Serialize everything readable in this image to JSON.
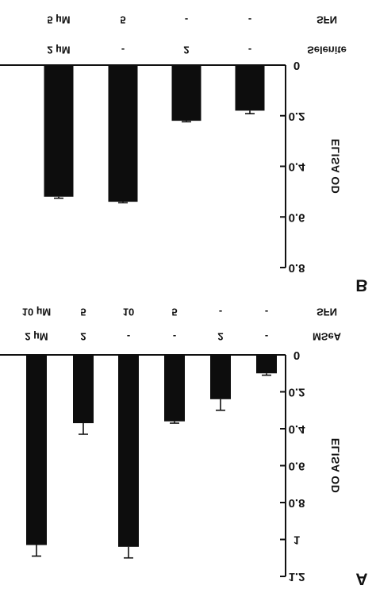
{
  "chart_data": [
    {
      "panel": "B",
      "type": "bar",
      "ylabel": "ELISA OD",
      "ylim": [
        0,
        0.8
      ],
      "yticks": [
        0,
        0.2,
        0.4,
        0.6,
        0.8
      ],
      "ytick_labels": [
        "0",
        "0.2",
        "0.4",
        "0.6",
        "0.8"
      ],
      "condition_rows": [
        {
          "label": "SFN",
          "values": [
            "-",
            "-",
            "5",
            "5 µM"
          ]
        },
        {
          "label": "Selenite",
          "values": [
            "-",
            "2",
            "-",
            "2 µM"
          ]
        }
      ],
      "values": [
        0.18,
        0.22,
        0.54,
        0.52
      ],
      "errors": [
        0.012,
        0.004,
        0.004,
        0.006
      ]
    },
    {
      "panel": "A",
      "type": "bar",
      "ylabel": "ELISA OD",
      "ylim": [
        0,
        1.2
      ],
      "yticks": [
        0,
        0.2,
        0.4,
        0.6,
        0.8,
        1,
        1.2
      ],
      "ytick_labels": [
        "0",
        "0.2",
        "0.4",
        "0.6",
        "0.8",
        "1",
        "1.2"
      ],
      "condition_rows": [
        {
          "label": "SFN",
          "values": [
            "-",
            "-",
            "5",
            "10",
            "5",
            "10 µM"
          ]
        },
        {
          "label": "MSeA",
          "values": [
            "-",
            "2",
            "-",
            "-",
            "2",
            "2 µM"
          ]
        }
      ],
      "values": [
        0.1,
        0.24,
        0.36,
        1.04,
        0.37,
        1.03
      ],
      "errors": [
        0.01,
        0.06,
        0.01,
        0.06,
        0.06,
        0.06
      ]
    }
  ]
}
